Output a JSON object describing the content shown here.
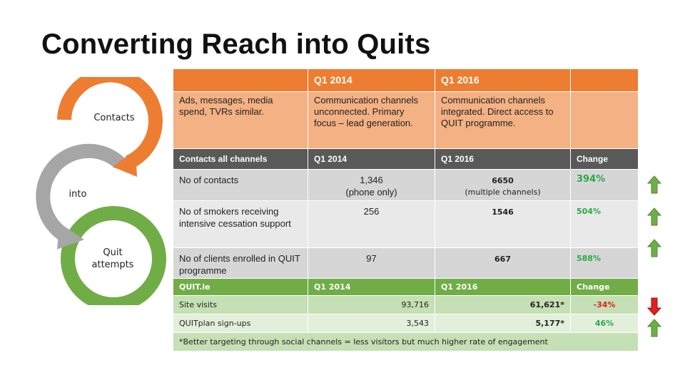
{
  "slide": {
    "title": "Converting Reach into Quits"
  },
  "cycle": {
    "steps": [
      {
        "label": "Contacts",
        "color": "#ed7d31"
      },
      {
        "label": "into",
        "color": "#a6a6a6"
      },
      {
        "label": "Quit attempts",
        "color": "#70ad47"
      }
    ]
  },
  "context_table": {
    "headers": [
      "",
      "Q1 2014",
      "Q1 2016",
      ""
    ],
    "row": [
      "Ads, messages, media spend, TVRs similar.",
      "Communication channels unconnected. Primary focus – lead generation.",
      "Communication channels integrated. Direct access to QUIT programme.",
      ""
    ]
  },
  "contacts_table": {
    "headers": [
      "Contacts all channels",
      "Q1 2014",
      "Q1 2016",
      "Change"
    ],
    "rows": [
      {
        "label": "No of contacts",
        "q1_2014": "1,346",
        "q1_2014_note": "(phone only)",
        "q1_2016": "6650",
        "q1_2016_note": "(multiple channels)",
        "change": "394%",
        "trend": "up"
      },
      {
        "label": "No of smokers receiving intensive cessation support",
        "q1_2014": "256",
        "q1_2016": "1546",
        "change": "504%",
        "trend": "up"
      },
      {
        "label": "No of clients enrolled in QUIT programme",
        "q1_2014": "97",
        "q1_2016": "667",
        "change": "588%",
        "trend": "up"
      }
    ]
  },
  "quit_table": {
    "headers": [
      "QUIT.ie",
      "Q1 2014",
      "Q1 2016",
      "Change"
    ],
    "rows": [
      {
        "label": "Site visits",
        "q1_2014": "93,716",
        "q1_2016": "61,621*",
        "change": "-34%",
        "trend": "down"
      },
      {
        "label": "QUITplan sign-ups",
        "q1_2014": "3,543",
        "q1_2016": "5,177*",
        "change": "46%",
        "trend": "up"
      }
    ],
    "footnote": "*Better targeting through social channels = less visitors but much higher rate of engagement"
  },
  "colors": {
    "orange": "#ed7d31",
    "light_orange": "#f4b183",
    "dark_grey": "#595959",
    "green": "#70ad47",
    "up_arrow": "#70ad47",
    "down_arrow": "#e02020"
  }
}
